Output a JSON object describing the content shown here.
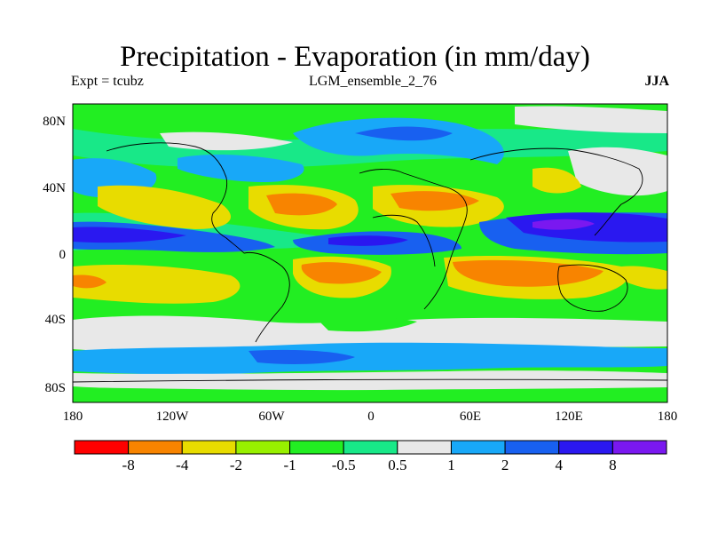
{
  "title": "Precipitation - Evaporation (in mm/day)",
  "subtitle_left": "Expt = tcubz",
  "subtitle_center": "LGM_ensemble_2_76",
  "subtitle_right": "JJA",
  "lat_labels": [
    "80N",
    "40N",
    "0",
    "40S",
    "80S"
  ],
  "lon_labels": [
    "180",
    "120W",
    "60W",
    "0",
    "60E",
    "120E",
    "180"
  ],
  "colorbar": {
    "colors": [
      "#ff0000",
      "#f88400",
      "#e8dc00",
      "#98f000",
      "#22ee22",
      "#18e888",
      "#e8e8e8",
      "#18a8f8",
      "#1860f0",
      "#2a18f0",
      "#7a18f0"
    ],
    "labels": [
      "-8",
      "-4",
      "-2",
      "-1",
      "-0.5",
      "0.5",
      "1",
      "2",
      "4",
      "8"
    ]
  }
}
